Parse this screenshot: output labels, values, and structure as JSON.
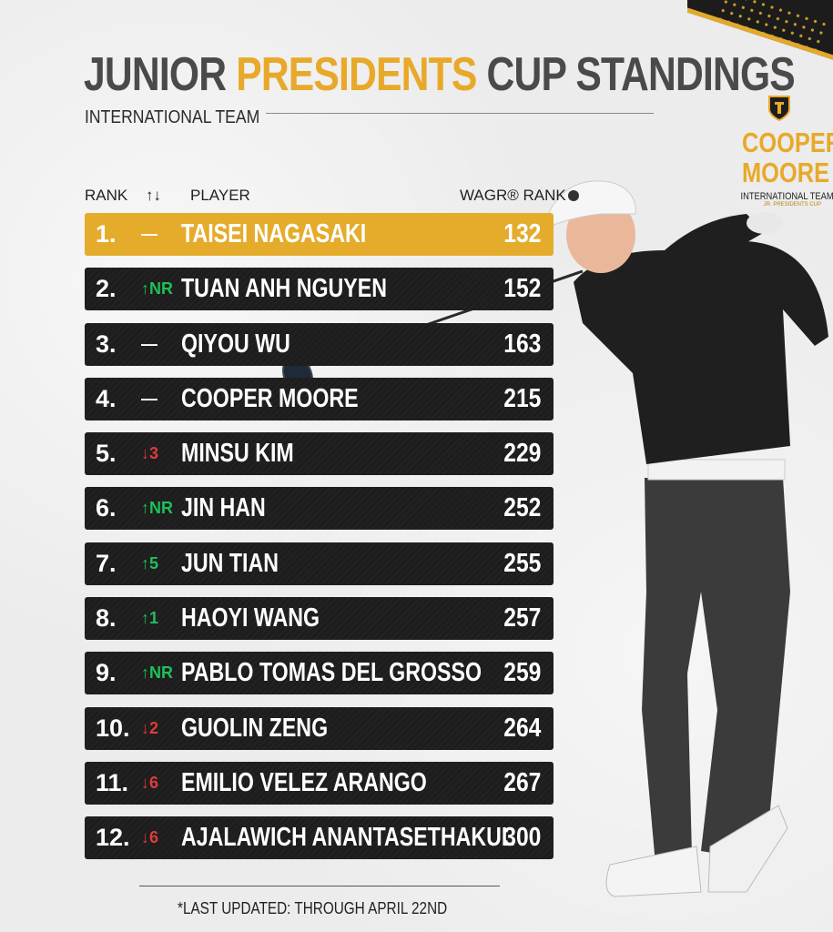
{
  "header": {
    "title_part1": "JUNIOR ",
    "title_highlight": "PRESIDENTS",
    "title_part2": " CUP STANDINGS",
    "subtitle": "INTERNATIONAL TEAM"
  },
  "badge": {
    "name_line1": "COOPER",
    "name_line2": "MOORE",
    "team": "INTERNATIONAL TEAM",
    "cup": "JR. PRESIDENTS CUP"
  },
  "columns": {
    "rank": "RANK",
    "movement": "↑↓",
    "player": "PLAYER",
    "wagr": "WAGR® RANK"
  },
  "rows": [
    {
      "rank": "1.",
      "move": "—",
      "dir": "same",
      "player": "TAISEI NAGASAKI",
      "wagr": "132"
    },
    {
      "rank": "2.",
      "move": "↑NR",
      "dir": "up",
      "player": "TUAN ANH NGUYEN",
      "wagr": "152"
    },
    {
      "rank": "3.",
      "move": "—",
      "dir": "same",
      "player": "QIYOU WU",
      "wagr": "163"
    },
    {
      "rank": "4.",
      "move": "—",
      "dir": "same",
      "player": "COOPER MOORE",
      "wagr": "215"
    },
    {
      "rank": "5.",
      "move": "↓3",
      "dir": "down",
      "player": "MINSU KIM",
      "wagr": "229"
    },
    {
      "rank": "6.",
      "move": "↑NR",
      "dir": "up",
      "player": "JIN HAN",
      "wagr": "252"
    },
    {
      "rank": "7.",
      "move": "↑5",
      "dir": "up",
      "player": "JUN TIAN",
      "wagr": "255"
    },
    {
      "rank": "8.",
      "move": "↑1",
      "dir": "up",
      "player": "HAOYI WANG",
      "wagr": "257"
    },
    {
      "rank": "9.",
      "move": "↑NR",
      "dir": "up",
      "player": "PABLO TOMAS DEL GROSSO",
      "wagr": "259"
    },
    {
      "rank": "10.",
      "move": "↓2",
      "dir": "down",
      "player": "GUOLIN ZENG",
      "wagr": "264"
    },
    {
      "rank": "11.",
      "move": "↓6",
      "dir": "down",
      "player": "EMILIO VELEZ ARANGO",
      "wagr": "267"
    },
    {
      "rank": "12.",
      "move": "↓6",
      "dir": "down",
      "player": "AJALAWICH ANANTASETHAKUL",
      "wagr": "300"
    }
  ],
  "footer": {
    "note": "*LAST UPDATED: THROUGH APRIL 22ND"
  },
  "colors": {
    "accent": "#e8a92a",
    "row_dark": "#1d1d1d",
    "up": "#1fbf5a",
    "down": "#e03a3a"
  }
}
